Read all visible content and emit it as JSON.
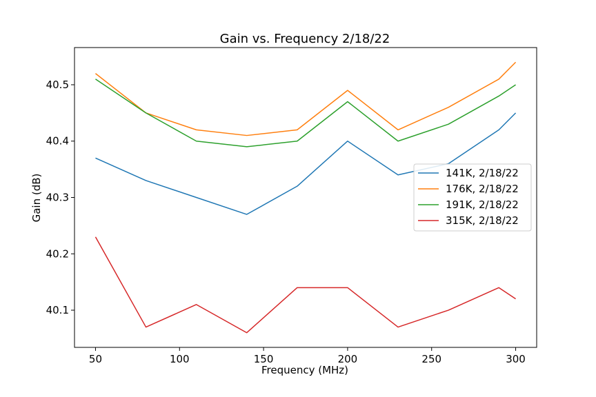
{
  "chart_data": {
    "type": "line",
    "title": "Gain vs. Frequency 2/18/22",
    "xlabel": "Frequency (MHz)",
    "ylabel": "Gain (dB)",
    "x": [
      50,
      80,
      110,
      140,
      170,
      200,
      230,
      260,
      290,
      300
    ],
    "xlim": [
      37.5,
      312.5
    ],
    "ylim": [
      40.034,
      40.566
    ],
    "xticks": [
      50,
      100,
      150,
      200,
      250,
      300
    ],
    "yticks": [
      40.1,
      40.2,
      40.3,
      40.4,
      40.5
    ],
    "xtick_labels": [
      "50",
      "100",
      "150",
      "200",
      "250",
      "300"
    ],
    "ytick_labels": [
      "40.1",
      "40.2",
      "40.3",
      "40.4",
      "40.5"
    ],
    "grid": false,
    "legend_position": "center-right",
    "series": [
      {
        "name": "141K, 2/18/22",
        "color": "#1f77b4",
        "values": [
          40.37,
          40.33,
          40.3,
          40.27,
          40.32,
          40.4,
          40.34,
          40.36,
          40.42,
          40.45
        ]
      },
      {
        "name": "176K, 2/18/22",
        "color": "#ff7f0e",
        "values": [
          40.52,
          40.45,
          40.42,
          40.41,
          40.42,
          40.49,
          40.42,
          40.46,
          40.51,
          40.54
        ]
      },
      {
        "name": "191K, 2/18/22",
        "color": "#2ca02c",
        "values": [
          40.51,
          40.45,
          40.4,
          40.39,
          40.4,
          40.47,
          40.4,
          40.43,
          40.48,
          40.5
        ]
      },
      {
        "name": "315K, 2/18/22",
        "color": "#d62728",
        "values": [
          40.23,
          40.07,
          40.11,
          40.06,
          40.14,
          40.14,
          40.07,
          40.1,
          40.14,
          40.12
        ]
      }
    ]
  }
}
